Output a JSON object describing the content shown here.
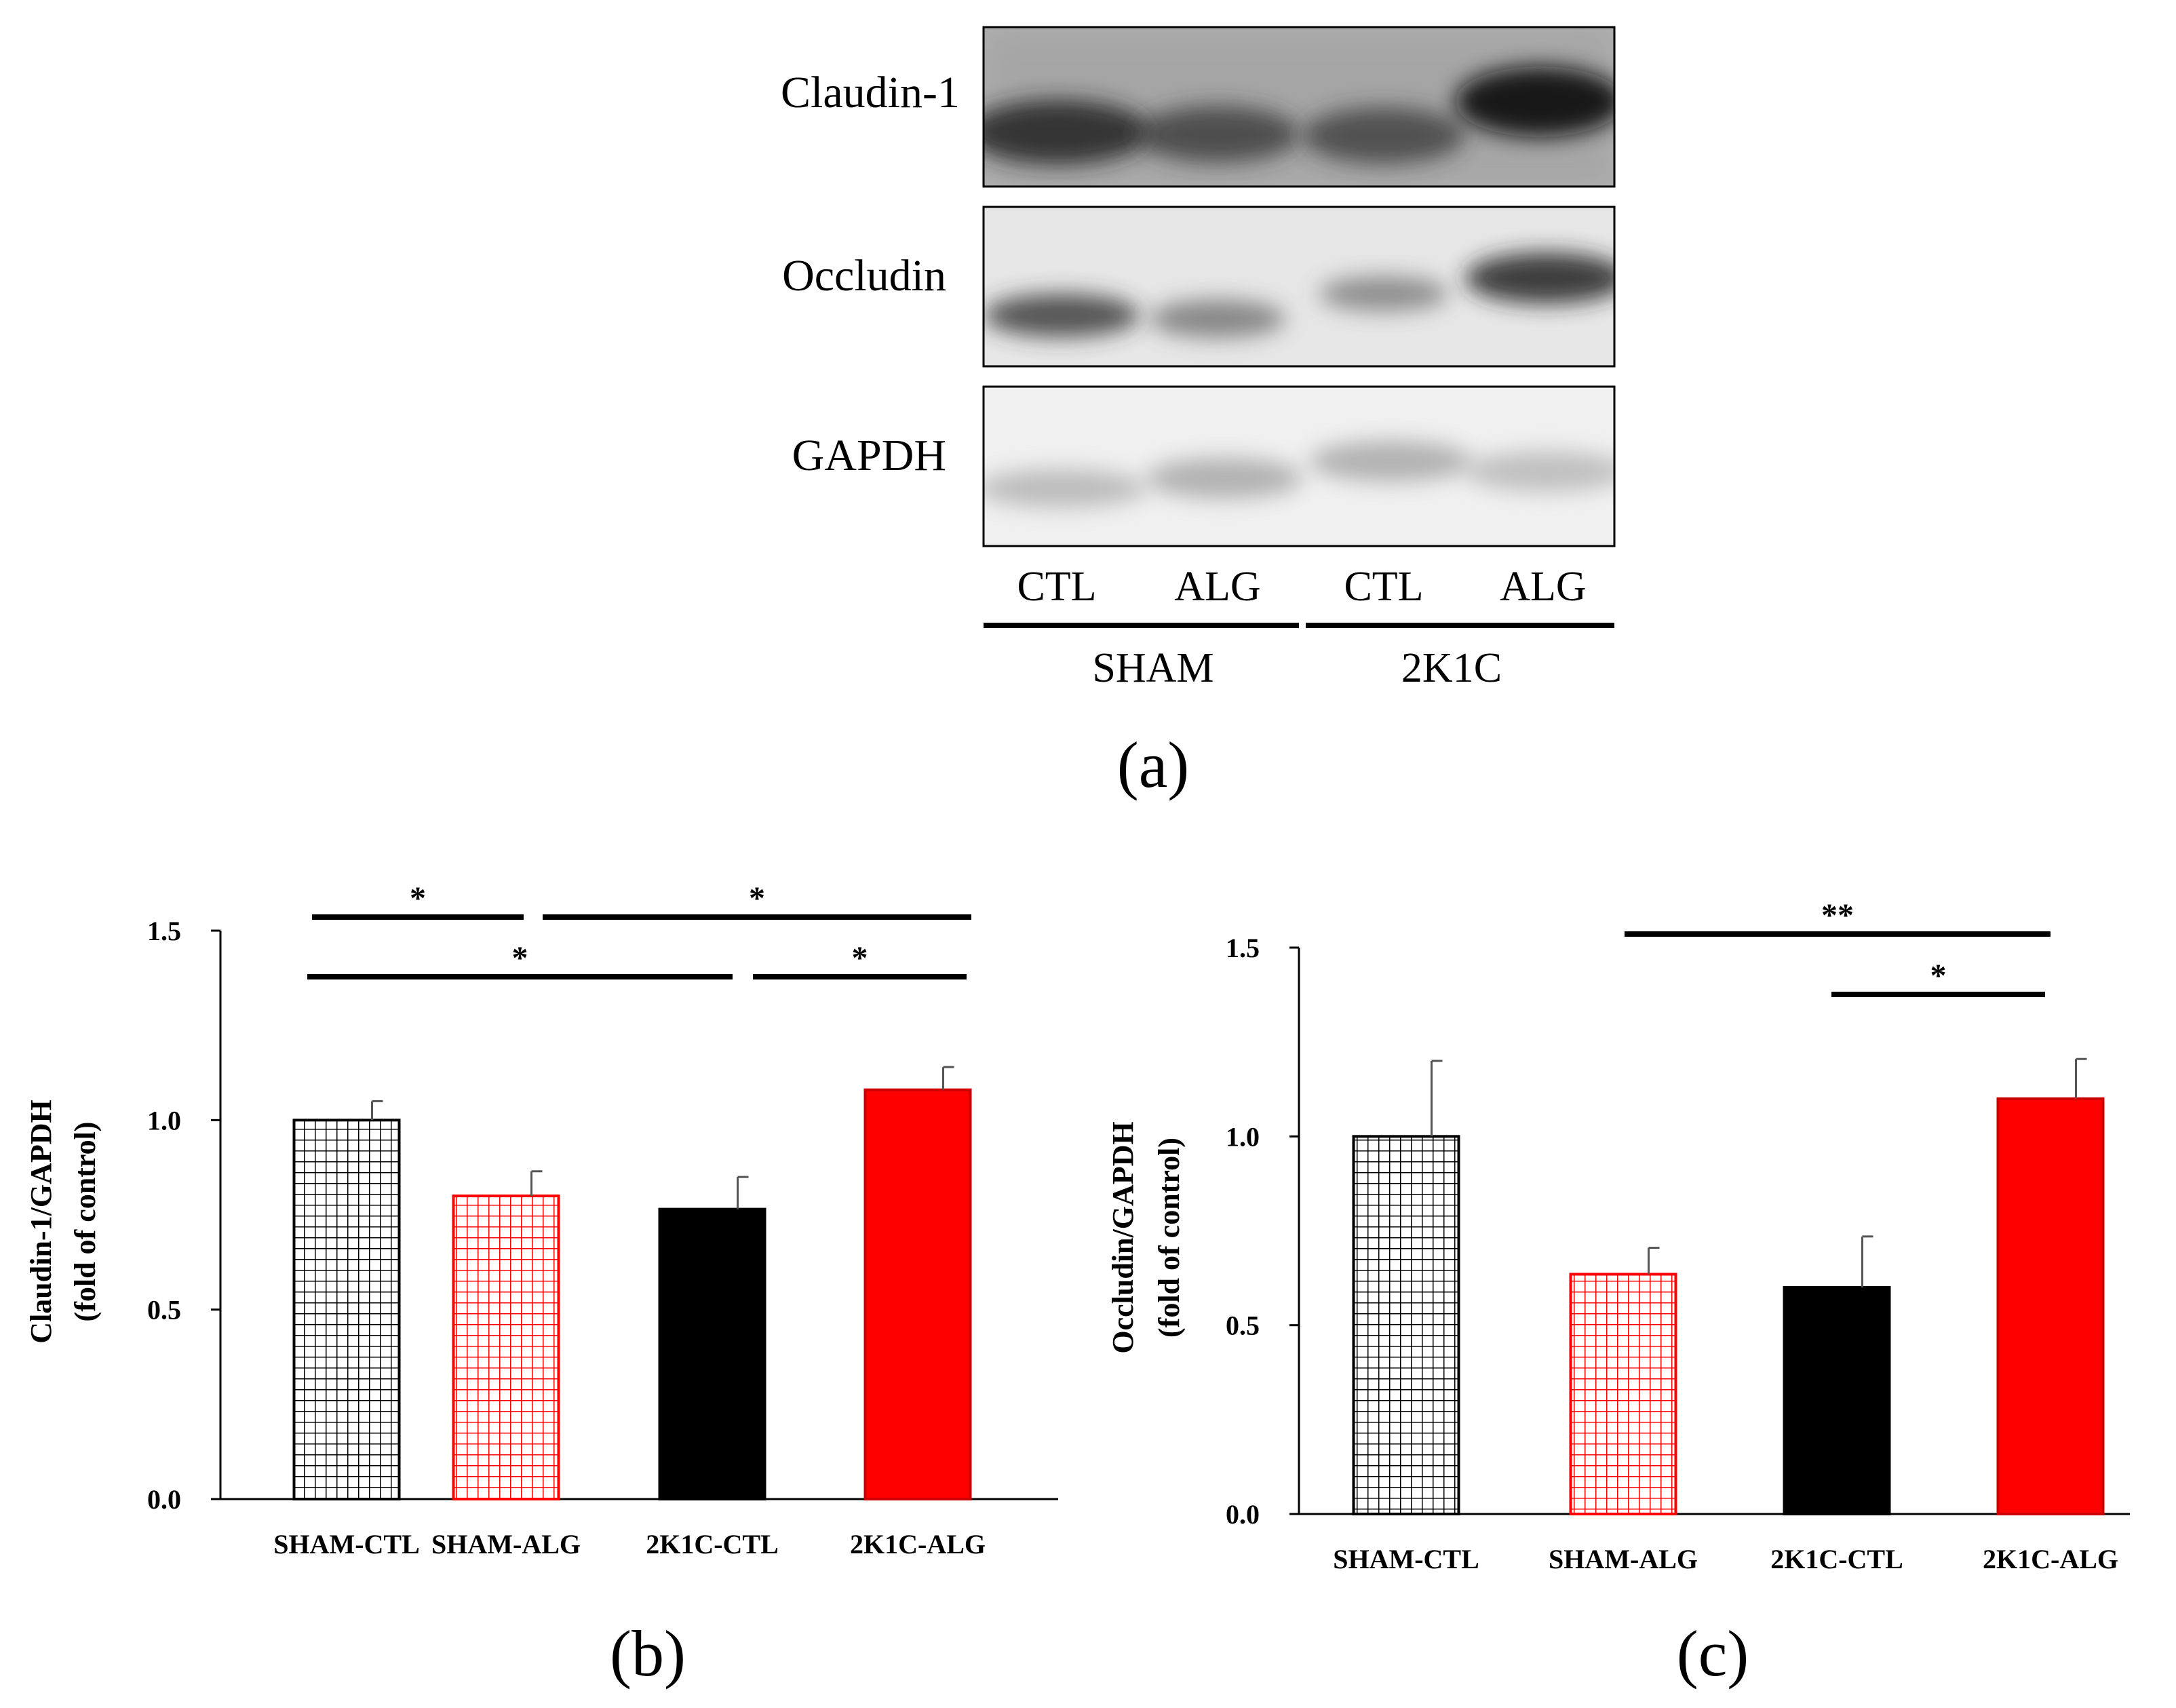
{
  "blot": {
    "proteins": [
      "Claudin-1",
      "Occludin",
      "GAPDH"
    ],
    "lanes": [
      "CTL",
      "ALG",
      "CTL",
      "ALG"
    ],
    "groups": [
      "SHAM",
      "2K1C"
    ],
    "panel_label": "(a)"
  },
  "chart_data": [
    {
      "type": "bar",
      "panel_label": "(b)",
      "title": "",
      "xlabel": "",
      "ylabel": "Claudin-1/GAPDH",
      "ylabel_sub": "(fold of control)",
      "categories": [
        "SHAM-CTL",
        "SHAM-ALG",
        "2K1C-CTL",
        "2K1C-ALG"
      ],
      "values": [
        1.0,
        0.8,
        0.765,
        1.08
      ],
      "errors": [
        0.05,
        0.065,
        0.085,
        0.06
      ],
      "fills": [
        "hatch-black",
        "hatch-red",
        "#000000",
        "#ff0000"
      ],
      "ylim": [
        0,
        1.5
      ],
      "yticks": [
        "0.0",
        "0.5",
        "1.0",
        "1.5"
      ],
      "significance": [
        {
          "from": 0,
          "to": 1,
          "label": "*",
          "level": 4
        },
        {
          "from": 1,
          "to": 3,
          "label": "*",
          "level": 4
        },
        {
          "from": 0,
          "to": 2,
          "label": "*",
          "level": 3
        },
        {
          "from": 2,
          "to": 3,
          "label": "*",
          "level": 3
        }
      ]
    },
    {
      "type": "bar",
      "panel_label": "(c)",
      "title": "",
      "xlabel": "",
      "ylabel": "Occludin/GAPDH",
      "ylabel_sub": "(fold of control)",
      "categories": [
        "SHAM-CTL",
        "SHAM-ALG",
        "2K1C-CTL",
        "2K1C-ALG"
      ],
      "values": [
        1.0,
        0.635,
        0.6,
        1.1
      ],
      "errors": [
        0.2,
        0.07,
        0.135,
        0.105
      ],
      "fills": [
        "hatch-black",
        "hatch-red",
        "#000000",
        "#ff0000"
      ],
      "ylim": [
        0,
        1.5
      ],
      "yticks": [
        "0.0",
        "0.5",
        "1.0",
        "1.5"
      ],
      "significance": [
        {
          "from": 1,
          "to": 3,
          "label": "**",
          "level": 4
        },
        {
          "from": 2,
          "to": 3,
          "label": "*",
          "level": 3
        }
      ]
    }
  ]
}
